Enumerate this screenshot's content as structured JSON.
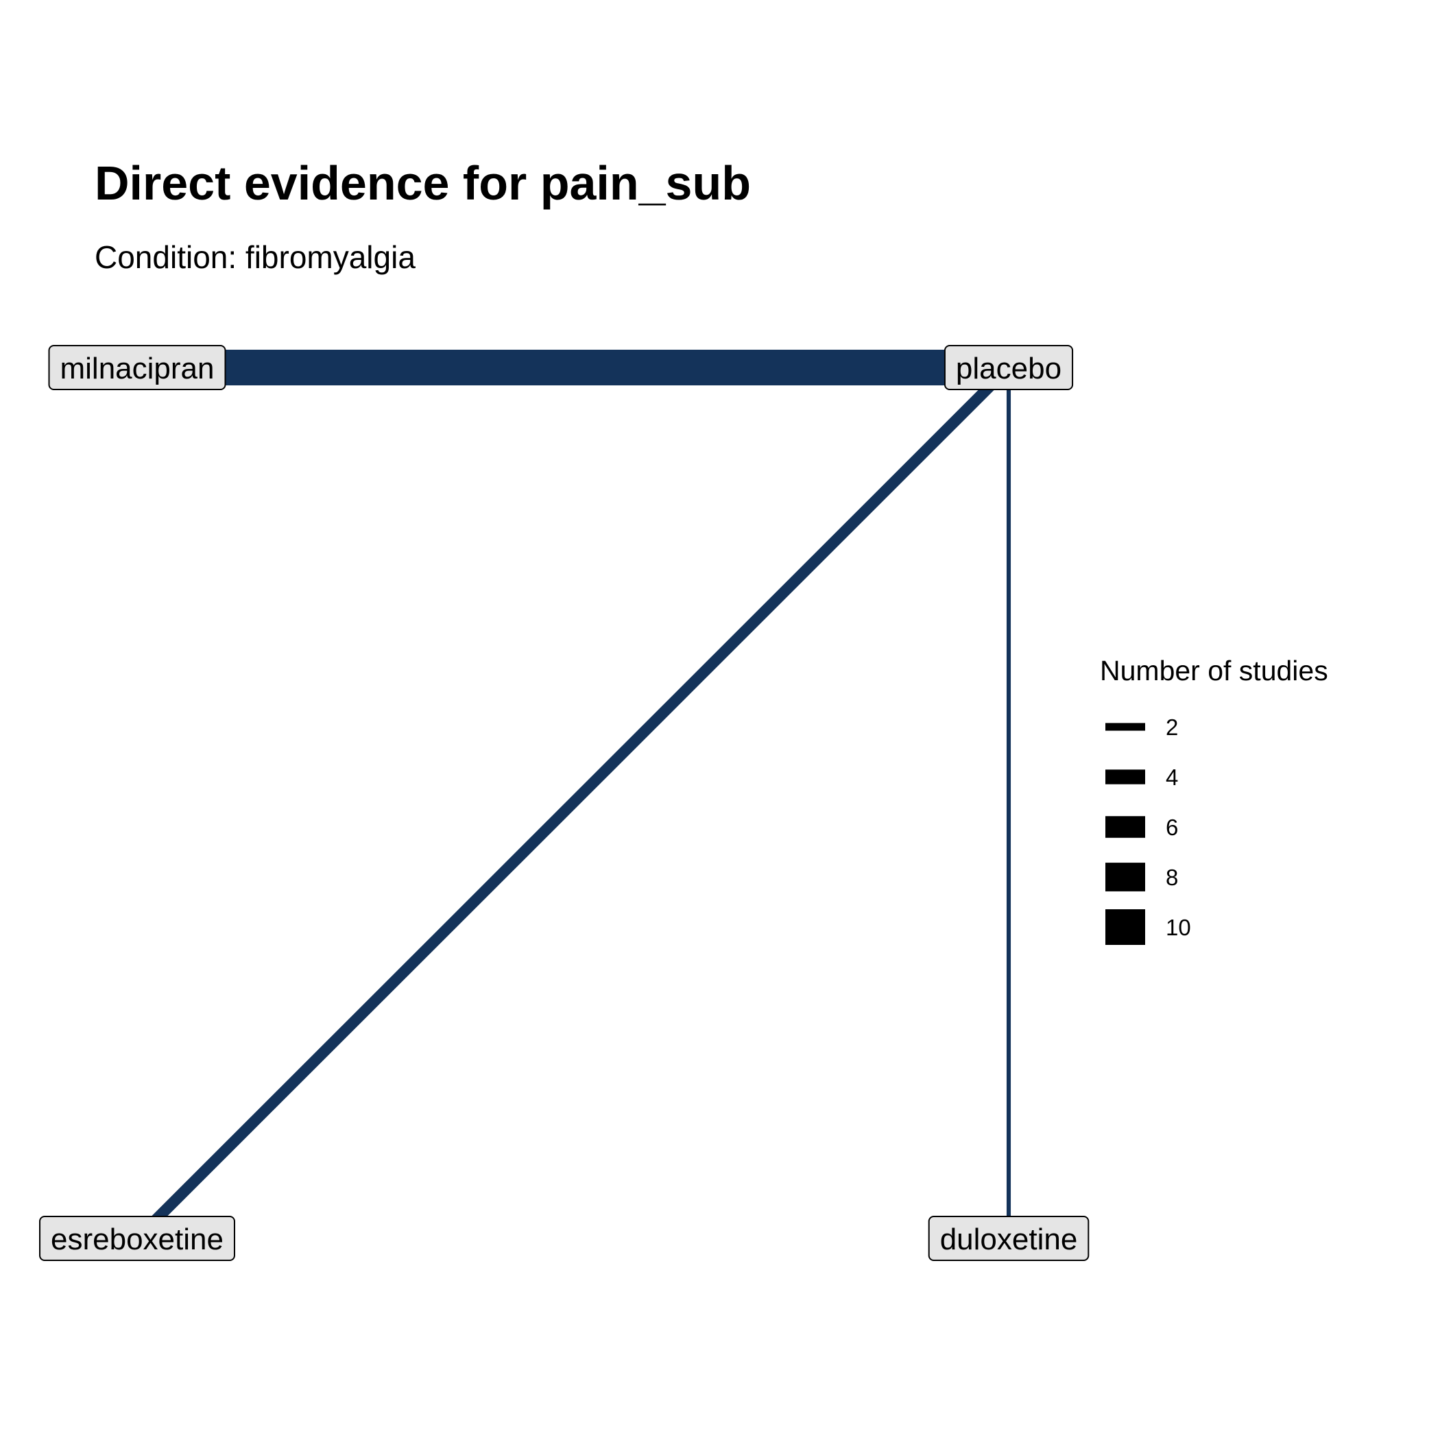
{
  "title": "Direct evidence for pain_sub",
  "subtitle": "Condition: fibromyalgia",
  "colors": {
    "edge": "#14335a",
    "node_fill": "#e5e5e5",
    "legend_key": "#000000"
  },
  "nodes": [
    {
      "id": "milnacipran",
      "label": "milnacipran"
    },
    {
      "id": "placebo",
      "label": "placebo"
    },
    {
      "id": "esreboxetine",
      "label": "esreboxetine"
    },
    {
      "id": "duloxetine",
      "label": "duloxetine"
    }
  ],
  "edges": [
    {
      "from": "milnacipran",
      "to": "placebo",
      "studies": 10
    },
    {
      "from": "placebo",
      "to": "esreboxetine",
      "studies": 3
    },
    {
      "from": "placebo",
      "to": "duloxetine",
      "studies": 1
    }
  ],
  "legend": {
    "title": "Number of studies",
    "items": [
      {
        "label": "2",
        "value": 2
      },
      {
        "label": "4",
        "value": 4
      },
      {
        "label": "6",
        "value": 6
      },
      {
        "label": "8",
        "value": 8
      },
      {
        "label": "10",
        "value": 10
      }
    ]
  }
}
